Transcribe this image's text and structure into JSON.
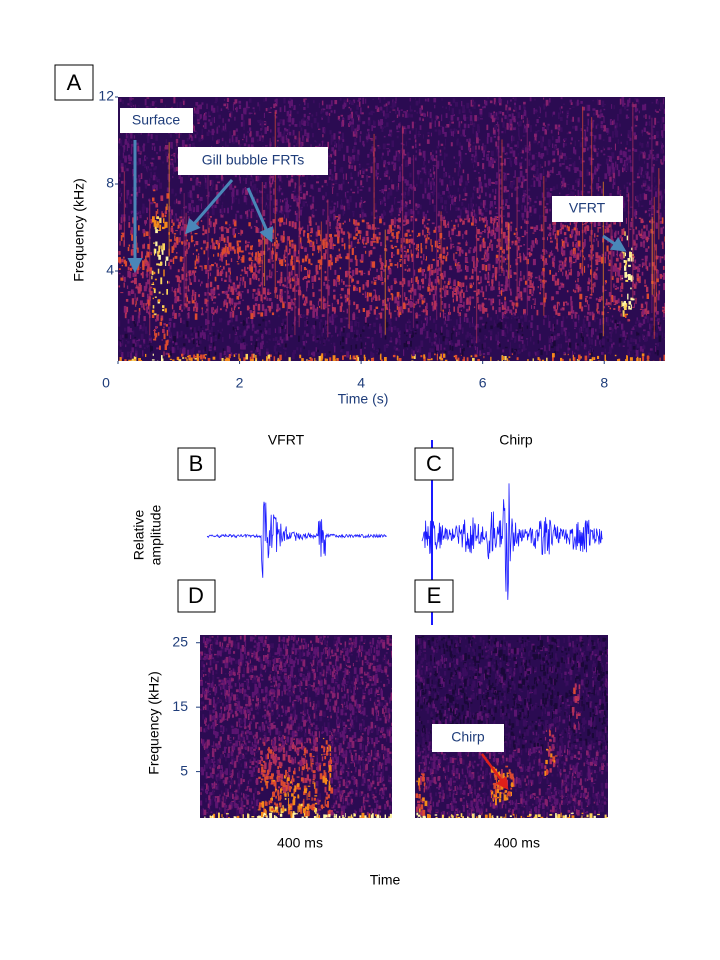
{
  "panel_a": {
    "label": "A",
    "y_label": "Frequency  (kHz)",
    "x_label": "Time (s)",
    "xlim": [
      0,
      9
    ],
    "ylim": [
      0,
      12
    ],
    "xticks": [
      0,
      2,
      4,
      6,
      8
    ],
    "yticks": [
      4,
      8,
      12
    ],
    "annotations": [
      "Surface",
      "Gill bubble FRTs",
      "VFRT"
    ]
  },
  "panel_b": {
    "label": "B",
    "title": "VFRT"
  },
  "panel_c": {
    "label": "C",
    "title": "Chirp"
  },
  "waveform_y_label": [
    "Relative",
    "amplitude"
  ],
  "panel_d": {
    "label": "D",
    "time_label": "400 ms"
  },
  "panel_e": {
    "label": "E",
    "time_label": "400 ms",
    "annotation": "Chirp"
  },
  "spectrogram_y_label": "Frequency  (kHz)",
  "spectrogram_ylim": [
    -2.2,
    26.2
  ],
  "spectrogram_yticks": [
    5,
    15,
    25
  ],
  "x_label": "Time"
}
